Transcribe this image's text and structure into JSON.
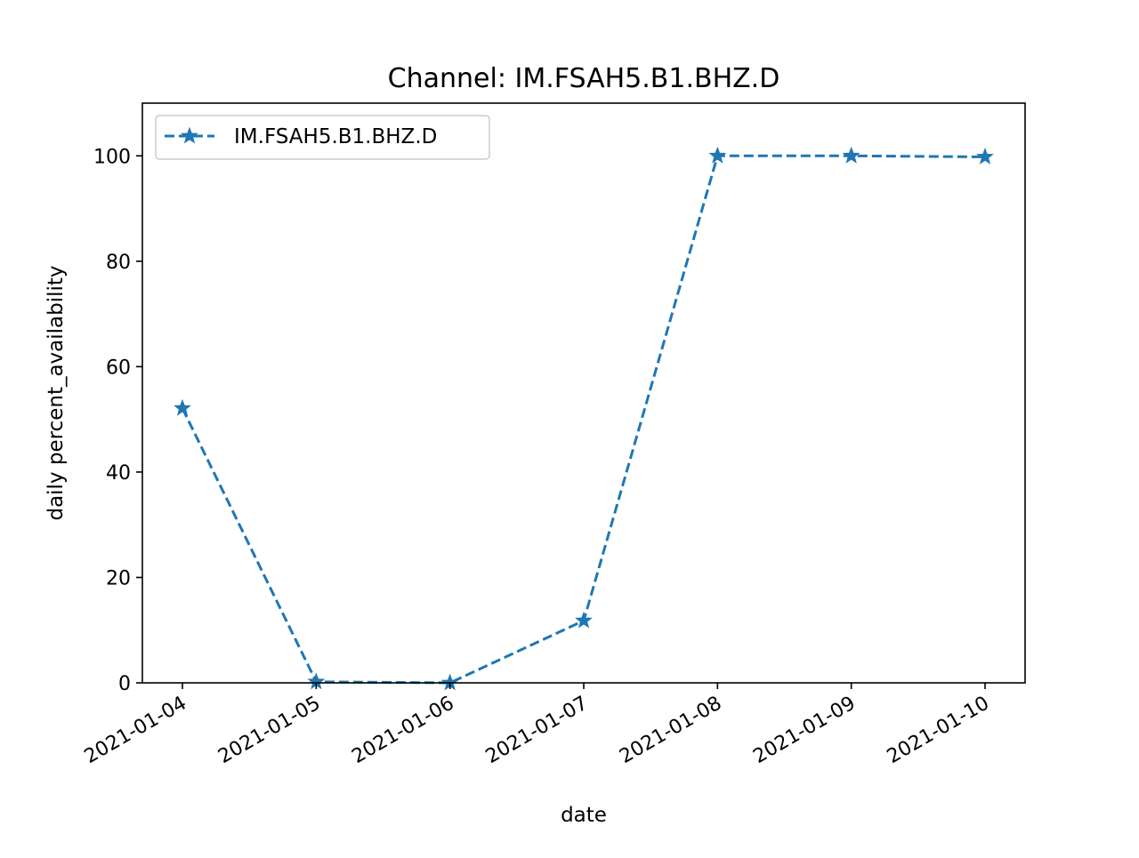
{
  "chart_data": {
    "type": "line",
    "title": "Channel: IM.FSAH5.B1.BHZ.D",
    "xlabel": "date",
    "ylabel": "daily percent_availability",
    "x": [
      "2021-01-04",
      "2021-01-05",
      "2021-01-06",
      "2021-01-07",
      "2021-01-08",
      "2021-01-09",
      "2021-01-10"
    ],
    "series": [
      {
        "name": "IM.FSAH5.B1.BHZ.D",
        "values": [
          52.1,
          0.2,
          0.0,
          11.8,
          100.0,
          100.0,
          99.8
        ],
        "color": "#1f77b4",
        "line_style": "dashed",
        "marker": "star"
      }
    ],
    "ylim": [
      0,
      110
    ],
    "yticks": [
      0,
      20,
      40,
      60,
      80,
      100
    ],
    "grid": false,
    "legend_position": "upper-left"
  }
}
